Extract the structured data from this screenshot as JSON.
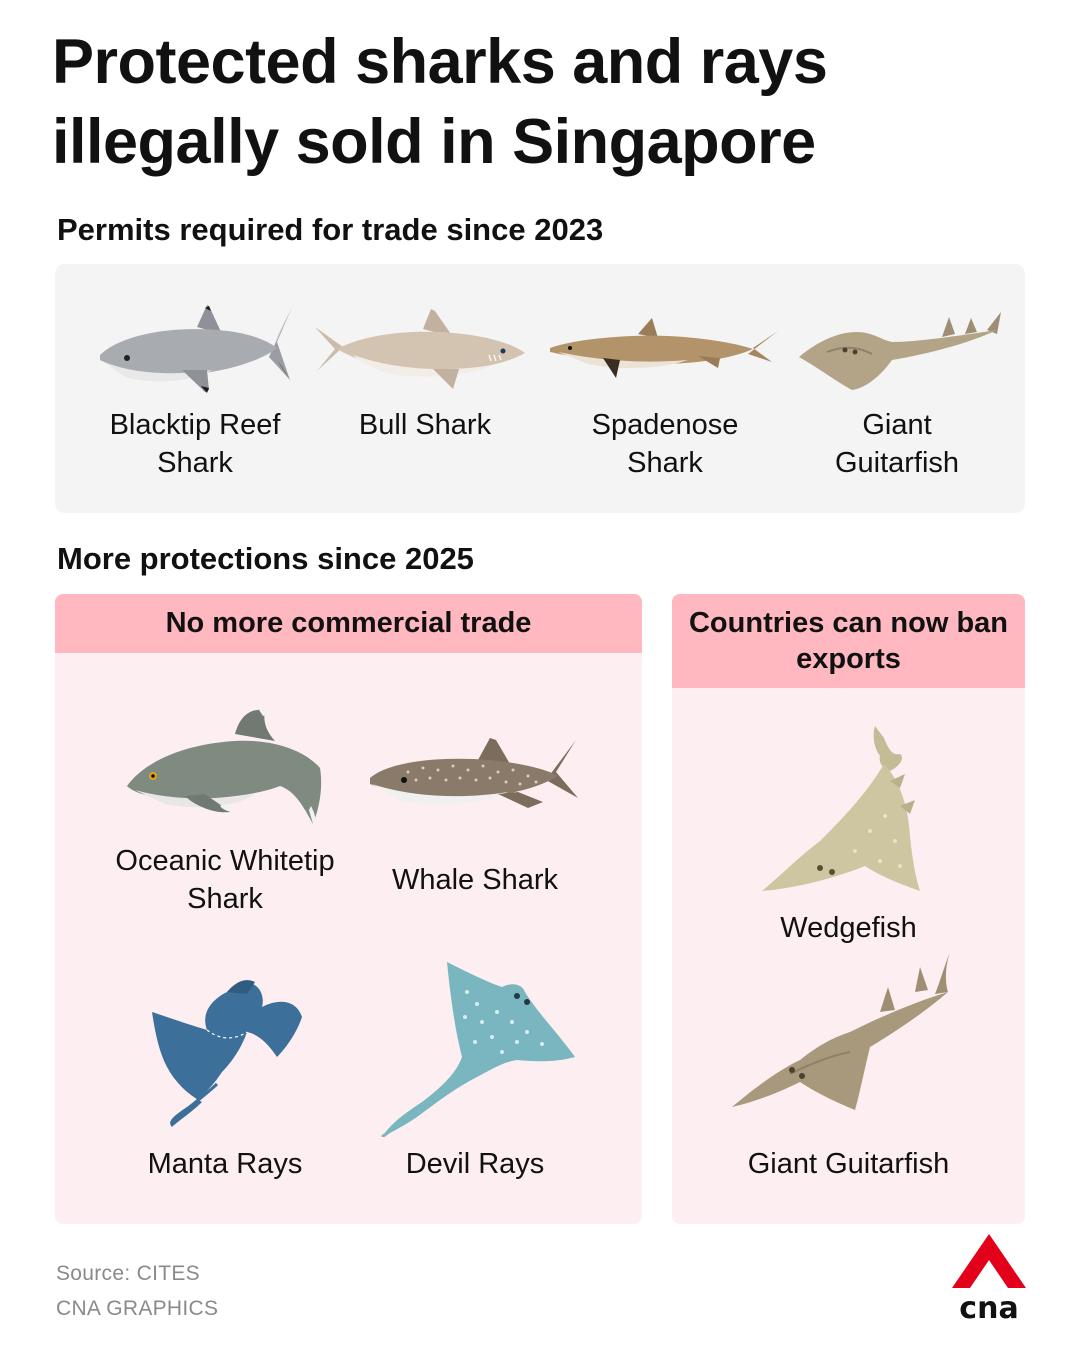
{
  "title": "Protected sharks and rays illegally sold in Singapore",
  "section_permits": {
    "heading": "Permits required for trade since 2023",
    "species": [
      {
        "name": "Blacktip Reef Shark",
        "icon": "blacktip-reef-shark-icon"
      },
      {
        "name": "Bull Shark",
        "icon": "bull-shark-icon"
      },
      {
        "name": "Spadenose Shark",
        "icon": "spadenose-shark-icon"
      },
      {
        "name": "Giant Guitarfish",
        "icon": "giant-guitarfish-icon"
      }
    ]
  },
  "section_protections": {
    "heading": "More protections since 2025",
    "no_trade": {
      "heading": "No more commercial trade",
      "species": [
        {
          "name": "Oceanic Whitetip Shark",
          "icon": "oceanic-whitetip-shark-icon"
        },
        {
          "name": "Whale Shark",
          "icon": "whale-shark-icon"
        },
        {
          "name": "Manta Rays",
          "icon": "manta-ray-icon"
        },
        {
          "name": "Devil Rays",
          "icon": "devil-ray-icon"
        }
      ]
    },
    "ban_exports": {
      "heading": "Countries can now ban exports",
      "species": [
        {
          "name": "Wedgefish",
          "icon": "wedgefish-icon"
        },
        {
          "name": "Giant Guitarfish",
          "icon": "giant-guitarfish-icon"
        }
      ]
    }
  },
  "footer": {
    "source": "Source: CITES",
    "credit": "CNA GRAPHICS",
    "logo_text": "cna"
  },
  "colors": {
    "grey_panel": "#f4f4f4",
    "pink_panel": "#fdeef1",
    "pink_header": "#ffb8c0",
    "logo_red": "#e2001a",
    "footer_text": "#8a8a8a"
  }
}
